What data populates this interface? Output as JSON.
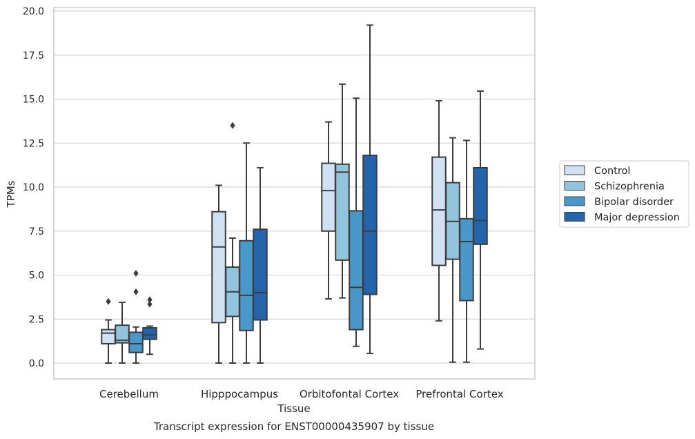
{
  "chart_data": {
    "type": "box",
    "title": "Transcript expression for ENST00000435907 by tissue",
    "xlabel": "Tissue",
    "ylabel": "TPMs",
    "ylim": [
      -0.9,
      20.2
    ],
    "yticks": [
      "0.0",
      "2.5",
      "5.0",
      "7.5",
      "10.0",
      "12.5",
      "15.0",
      "17.5",
      "20.0"
    ],
    "ytick_values": [
      0,
      2.5,
      5,
      7.5,
      10,
      12.5,
      15,
      17.5,
      20
    ],
    "grid": "horizontal",
    "legend": "right",
    "categories": [
      "Cerebellum",
      "Hipppocampus",
      "Orbitofontal Cortex",
      "Prefrontal Cortex"
    ],
    "series": [
      {
        "name": "Control",
        "color": "#cfe1f2",
        "boxes": [
          {
            "min": 0.0,
            "q1": 1.1,
            "median": 1.7,
            "q3": 1.9,
            "max": 2.45,
            "outliers": [
              3.5
            ]
          },
          {
            "min": 0.0,
            "q1": 2.3,
            "median": 6.6,
            "q3": 8.6,
            "max": 10.1,
            "outliers": []
          },
          {
            "min": 3.65,
            "q1": 7.5,
            "median": 9.8,
            "q3": 11.35,
            "max": 13.7,
            "outliers": []
          },
          {
            "min": 2.4,
            "q1": 5.55,
            "median": 8.7,
            "q3": 11.7,
            "max": 14.9,
            "outliers": []
          }
        ]
      },
      {
        "name": "Schizophrenia",
        "color": "#93c4de",
        "boxes": [
          {
            "min": 0.0,
            "q1": 1.15,
            "median": 1.3,
            "q3": 2.15,
            "max": 3.45,
            "outliers": []
          },
          {
            "min": 0.0,
            "q1": 2.65,
            "median": 4.05,
            "q3": 5.45,
            "max": 7.1,
            "outliers": [
              13.5
            ]
          },
          {
            "min": 3.7,
            "q1": 5.85,
            "median": 10.85,
            "q3": 11.3,
            "max": 15.85,
            "outliers": []
          },
          {
            "min": 0.05,
            "q1": 5.9,
            "median": 8.05,
            "q3": 10.25,
            "max": 12.8,
            "outliers": []
          }
        ]
      },
      {
        "name": "Bipolar disorder",
        "color": "#4a98c9",
        "boxes": [
          {
            "min": 0.0,
            "q1": 0.6,
            "median": 1.1,
            "q3": 1.75,
            "max": 2.05,
            "outliers": [
              4.05,
              5.1
            ]
          },
          {
            "min": 0.0,
            "q1": 1.85,
            "median": 3.85,
            "q3": 6.95,
            "max": 12.5,
            "outliers": []
          },
          {
            "min": 0.95,
            "q1": 1.9,
            "median": 4.3,
            "q3": 8.65,
            "max": 15.05,
            "outliers": []
          },
          {
            "min": 0.05,
            "q1": 3.55,
            "median": 6.9,
            "q3": 8.2,
            "max": 12.65,
            "outliers": []
          }
        ]
      },
      {
        "name": "Major depression",
        "color": "#2464ab",
        "boxes": [
          {
            "min": 0.5,
            "q1": 1.35,
            "median": 1.6,
            "q3": 2.0,
            "max": 2.1,
            "outliers": [
              3.35,
              3.6
            ]
          },
          {
            "min": 0.0,
            "q1": 2.45,
            "median": 4.0,
            "q3": 7.6,
            "max": 11.1,
            "outliers": []
          },
          {
            "min": 0.55,
            "q1": 3.9,
            "median": 7.5,
            "q3": 11.8,
            "max": 19.2,
            "outliers": []
          },
          {
            "min": 0.8,
            "q1": 6.75,
            "median": 8.1,
            "q3": 11.1,
            "max": 15.45,
            "outliers": []
          }
        ]
      }
    ]
  }
}
